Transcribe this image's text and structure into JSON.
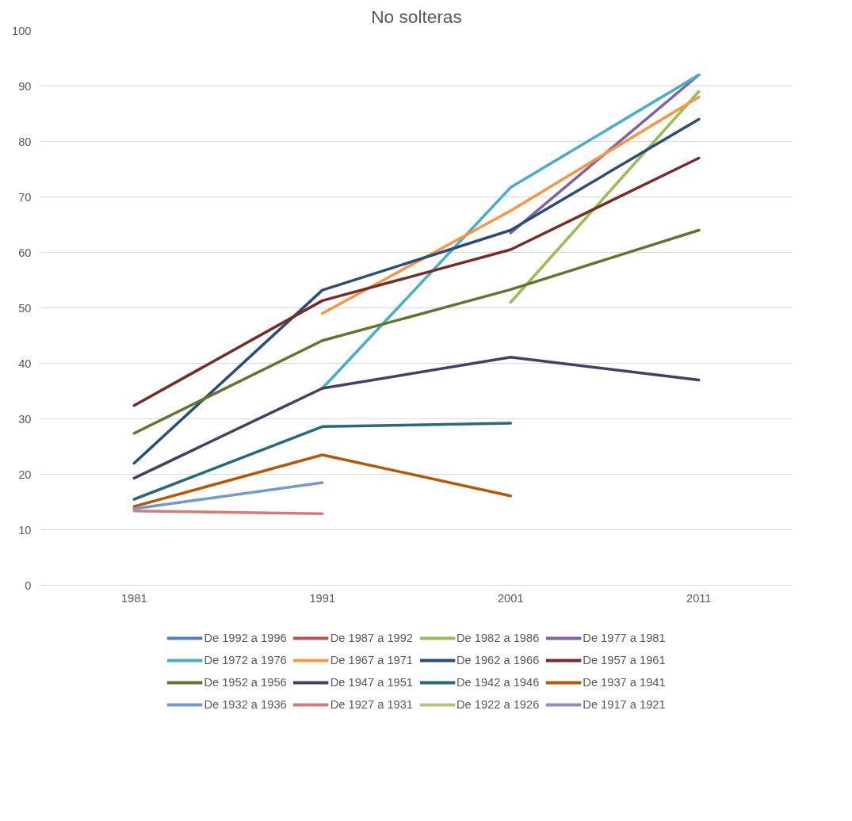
{
  "chart_data": {
    "type": "line",
    "title": "No solteras",
    "categories": [
      "1981",
      "1991",
      "2001",
      "2011"
    ],
    "ylim": [
      0,
      100
    ],
    "yticks": [
      0,
      10,
      20,
      30,
      40,
      50,
      60,
      70,
      80,
      90,
      100
    ],
    "grid": "y",
    "legend": "bottom",
    "marker": "none",
    "line_style": "solid",
    "series": [
      {
        "name": "De 1992 a 1996",
        "color": "#4f81bd",
        "values": [
          null,
          null,
          null,
          null
        ]
      },
      {
        "name": "De 1987 a 1992",
        "color": "#c0504d",
        "values": [
          null,
          null,
          null,
          null
        ]
      },
      {
        "name": "De 1982 a 1986",
        "color": "#9bbb59",
        "values": [
          null,
          null,
          51,
          89
        ]
      },
      {
        "name": "De 1977 a 1981",
        "color": "#8064a2",
        "values": [
          null,
          null,
          63.5,
          92
        ]
      },
      {
        "name": "De 1972 a 1976",
        "color": "#4bacc6",
        "values": [
          null,
          35.5,
          71.7,
          92
        ]
      },
      {
        "name": "De 1967 a 1971",
        "color": "#f79646",
        "values": [
          null,
          49,
          67.5,
          88
        ]
      },
      {
        "name": "De 1962 a 1966",
        "color": "#2c4d75",
        "values": [
          22,
          53.2,
          64,
          84
        ]
      },
      {
        "name": "De 1957 a 1961",
        "color": "#772c2a",
        "values": [
          32.4,
          51.3,
          60.5,
          77
        ]
      },
      {
        "name": "De 1952 a 1956",
        "color": "#5f7530",
        "values": [
          27.4,
          44.1,
          53.3,
          64
        ]
      },
      {
        "name": "De 1947 a 1951",
        "color": "#4d3b62",
        "values": [
          19.3,
          35.5,
          41.1,
          37
        ]
      },
      {
        "name": "De 1942 a 1946",
        "color": "#276a7c",
        "values": [
          15.5,
          28.6,
          29.2,
          null
        ]
      },
      {
        "name": "De 1937 a 1941",
        "color": "#b65708",
        "values": [
          14.2,
          23.5,
          16.1,
          null
        ]
      },
      {
        "name": "De 1932 a 1936",
        "color": "#729aca",
        "values": [
          13.8,
          18.5,
          null,
          null
        ]
      },
      {
        "name": "De 1927 a 1931",
        "color": "#d47c7a",
        "values": [
          13.4,
          12.9,
          null,
          null
        ]
      },
      {
        "name": "De 1922 a 1926",
        "color": "#afc97a",
        "values": [
          null,
          null,
          null,
          null
        ]
      },
      {
        "name": "De 1917 a 1921",
        "color": "#9d87bb",
        "values": [
          null,
          null,
          null,
          null
        ]
      }
    ]
  }
}
